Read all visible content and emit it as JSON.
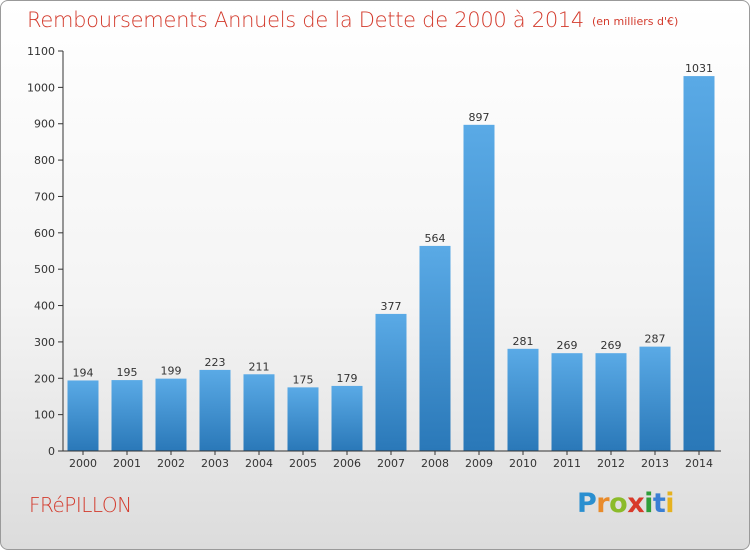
{
  "title": "Remboursements Annuels de la Dette de 2000 à 2014",
  "unit_label": "(en milliers d'€)",
  "commune": "FRéPILLON",
  "logo_text": "Proxiti",
  "colors": {
    "title": "#d33a2c",
    "bar_top": "#5aaae6",
    "bar_bottom": "#2a78b8",
    "axis": "#333333"
  },
  "chart_data": {
    "type": "bar",
    "categories": [
      "2000",
      "2001",
      "2002",
      "2003",
      "2004",
      "2005",
      "2006",
      "2007",
      "2008",
      "2009",
      "2010",
      "2011",
      "2012",
      "2013",
      "2014"
    ],
    "values": [
      194,
      195,
      199,
      223,
      211,
      175,
      179,
      377,
      564,
      897,
      281,
      269,
      269,
      287,
      1031
    ],
    "ylim": [
      0,
      1100
    ],
    "yticks": [
      0,
      100,
      200,
      300,
      400,
      500,
      600,
      700,
      800,
      900,
      1000,
      1100
    ],
    "grid": false,
    "data_labels": true
  }
}
